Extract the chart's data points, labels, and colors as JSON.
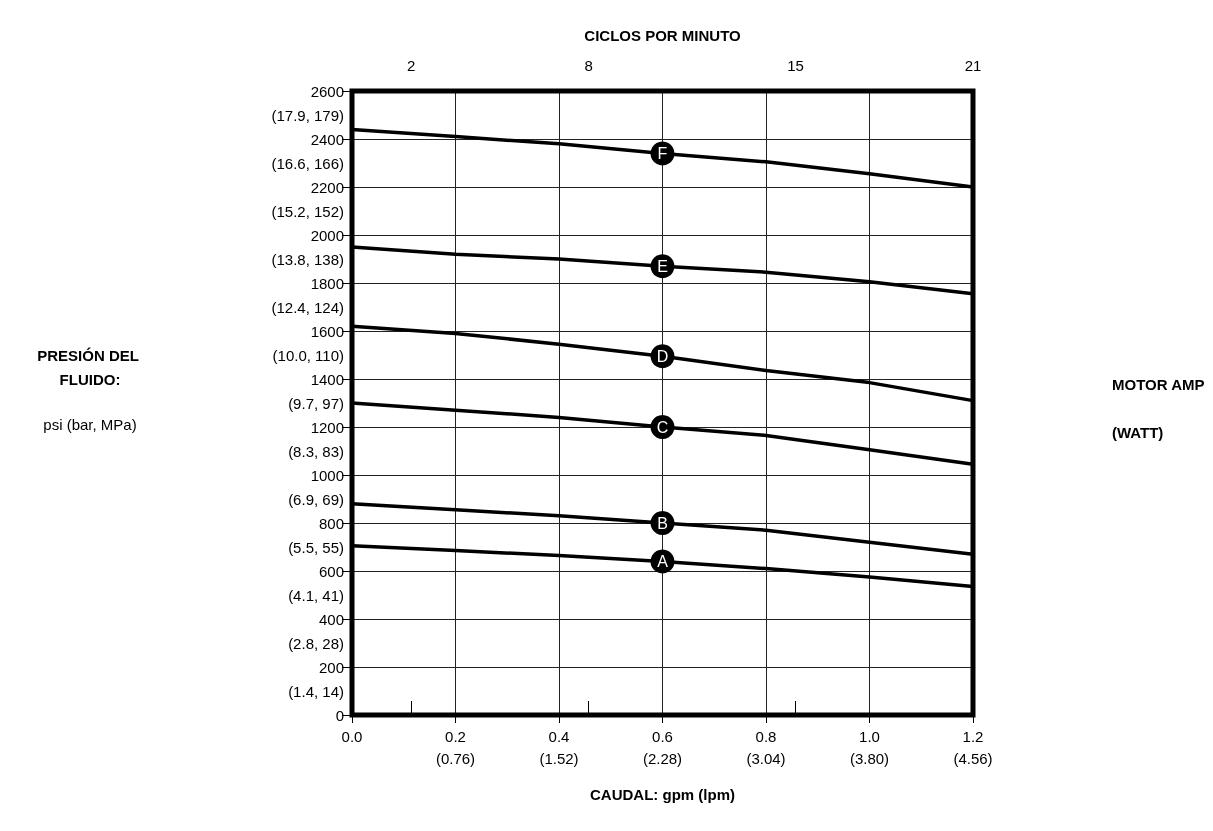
{
  "chart_data": {
    "type": "line",
    "xlabel": "CAUDAL: gpm (lpm)",
    "x2label": "CICLOS POR MINUTO",
    "annotations": [
      "PRESIÓN DEL FLUIDO:",
      "psi (bar, MPa)",
      "MOTOR AMP",
      "(WATT)"
    ],
    "categories": [
      "0.0",
      "0.2\n(0.76)",
      "0.4\n(1.52)",
      "0.6\n(2.28)",
      "0.8\n(3.04)",
      "1.0\n(3.80)",
      "1.2\n(4.56)"
    ],
    "series": [
      {
        "name": "F",
        "color": "#000000",
        "values": [
          2440,
          2410,
          2380,
          2340,
          2305,
          2255,
          2200
        ]
      },
      {
        "name": "E",
        "color": "#000000",
        "values": [
          1950,
          1920,
          1900,
          1870,
          1845,
          1805,
          1755
        ]
      },
      {
        "name": "D",
        "color": "#000000",
        "values": [
          1620,
          1590,
          1545,
          1495,
          1435,
          1385,
          1310
        ]
      },
      {
        "name": "C",
        "color": "#000000",
        "values": [
          1300,
          1270,
          1240,
          1200,
          1165,
          1105,
          1045
        ]
      },
      {
        "name": "B",
        "color": "#000000",
        "values": [
          880,
          855,
          830,
          800,
          770,
          720,
          670
        ]
      },
      {
        "name": "A",
        "color": "#000000",
        "values": [
          705,
          685,
          665,
          640,
          610,
          575,
          535
        ]
      }
    ],
    "x2lim": [
      0,
      21
    ],
    "x2ticks": [
      2,
      8,
      15,
      21
    ],
    "ylim": [
      0,
      2600
    ],
    "yticks": [
      0,
      {
        "value": 100,
        "label": "(1.4, 14)"
      },
      200,
      {
        "value": 300,
        "label": "(2.8, 28)"
      },
      400,
      {
        "value": 500,
        "label": "(4.1, 41)"
      },
      600,
      {
        "value": 700,
        "label": "(5.5, 55)"
      },
      800,
      {
        "value": 900,
        "label": "(6.9, 69)"
      },
      1000,
      {
        "value": 1100,
        "label": "(8.3, 83)"
      },
      1200,
      {
        "value": 1300,
        "label": "(9.7, 97)"
      },
      1400,
      {
        "value": 1500,
        "label": "(10.0, 110)"
      },
      1600,
      {
        "value": 1700,
        "label": "(12.4, 124)"
      },
      1800,
      {
        "value": 1900,
        "label": "(13.8, 138)"
      },
      2000,
      {
        "value": 2100,
        "label": "(15.2, 152)"
      },
      2200,
      {
        "value": 2300,
        "label": "(16.6, 166)"
      },
      2400,
      {
        "value": 2500,
        "label": "(17.9, 179)"
      },
      2600
    ],
    "grid": true,
    "marker": "none",
    "line_style": "solid",
    "legend": false
  }
}
